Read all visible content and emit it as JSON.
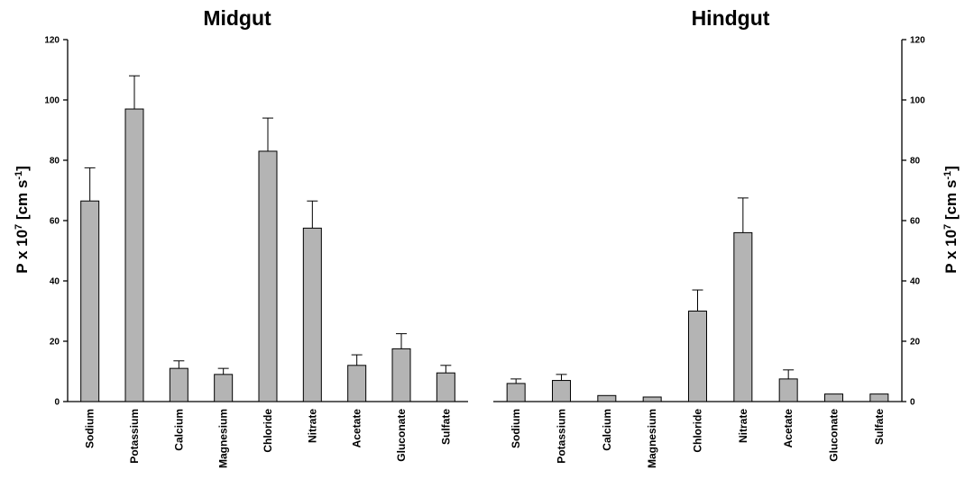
{
  "chart_data": [
    {
      "type": "bar",
      "title": "Midgut",
      "ylabel": "P x 10^7 [cm s^-1]",
      "ylabel_parts": {
        "main": "P x 10",
        "exp": "7",
        "unit": " [cm s",
        "unit_exp": "-1",
        "close": "]"
      },
      "ylim": [
        0,
        120
      ],
      "yticks": [
        0,
        20,
        40,
        60,
        80,
        100,
        120
      ],
      "categories": [
        "Sodium",
        "Potassium",
        "Calcium",
        "Magnesium",
        "Chloride",
        "Nitrate",
        "Acetate",
        "Gluconate",
        "Sulfate"
      ],
      "values": [
        66.5,
        97,
        11,
        9,
        83,
        57.5,
        12,
        17.5,
        9.5
      ],
      "errors": [
        11,
        11,
        2.5,
        2,
        11,
        9,
        3.5,
        5,
        2.5
      ],
      "y_axis_side": "left",
      "grid": false
    },
    {
      "type": "bar",
      "title": "Hindgut",
      "ylabel": "P x 10^7 [cm s^-1]",
      "ylabel_parts": {
        "main": "P x 10",
        "exp": "7",
        "unit": " [cm s",
        "unit_exp": "-1",
        "close": "]"
      },
      "ylim": [
        0,
        120
      ],
      "yticks": [
        0,
        20,
        40,
        60,
        80,
        100,
        120
      ],
      "categories": [
        "Sodium",
        "Potassium",
        "Calcium",
        "Magnesium",
        "Chloride",
        "Nitrate",
        "Acetate",
        "Gluconate",
        "Sulfate"
      ],
      "values": [
        6,
        7,
        2,
        1.5,
        30,
        56,
        7.5,
        2.5,
        2.5
      ],
      "errors": [
        1.5,
        2,
        0,
        0,
        7,
        11.5,
        3,
        0,
        0
      ],
      "y_axis_side": "right",
      "grid": false
    }
  ]
}
